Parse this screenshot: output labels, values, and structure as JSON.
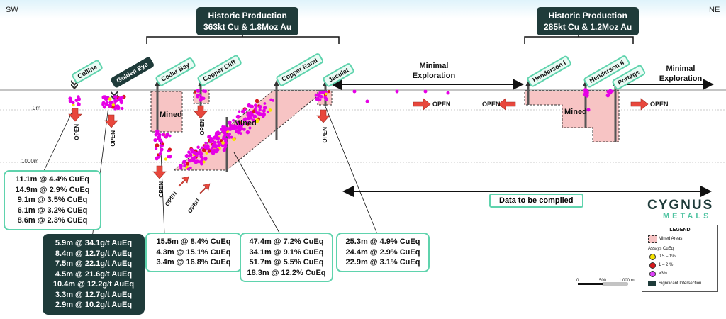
{
  "directions": {
    "left": "SW",
    "right": "NE"
  },
  "historic": [
    {
      "title": "Historic Production",
      "value": "363kt Cu & 1.8Moz Au"
    },
    {
      "title": "Historic Production",
      "value": "285kt Cu & 1.2Moz Au"
    }
  ],
  "deposits": [
    "Colline",
    "Golden Eye",
    "Cedar Bay",
    "Copper Cliff",
    "Copper Rand",
    "Jaculet",
    "Henderson I",
    "Henderson II",
    "Portage"
  ],
  "minimal_exploration": [
    "Minimal Exploration",
    "Minimal Exploration"
  ],
  "depth_labels": [
    "0m",
    "1000m"
  ],
  "mined_label": "Mined",
  "open_label": "OPEN",
  "data_banner": "Data to be compiled",
  "intercepts": {
    "colline": [
      "11.1m @ 4.4% CuEq",
      "14.9m @ 2.9% CuEq",
      "9.1m @ 3.5% CuEq",
      "6.1m @ 3.2% CuEq",
      "8.6m @ 2.3% CuEq"
    ],
    "golden_eye": [
      "5.9m @ 34.1g/t AuEq",
      "8.4m @ 12.7g/t AuEq",
      "7.5m @ 22.1g/t AuEq",
      "4.5m @ 21.6g/t AuEq",
      "10.4m @ 12.2g/t AuEq",
      "3.3m @ 12.7g/t AuEq",
      "2.9m @ 10.2g/t AuEq"
    ],
    "cedar_bay": [
      "15.5m @ 8.4% CuEq",
      "4.3m @ 15.1% CuEq",
      "3.4m @ 16.8% CuEq"
    ],
    "copper_rand": [
      "47.4m @ 7.2% CuEq",
      "34.1m @ 9.1% CuEq",
      "51.7m @ 5.5% CuEq",
      "18.3m @ 12.2% CuEq"
    ],
    "jaculet": [
      "25.3m @ 4.9% CuEq",
      "24.4m @ 2.9% CuEq",
      "22.9m @ 3.1% CuEq"
    ]
  },
  "logo": {
    "name": "CYGNUS",
    "sub": "METALS"
  },
  "legend": {
    "title": "LEGEND",
    "mined": "Mined Areas",
    "assays_title": "Assays CuEq",
    "assays": [
      {
        "label": "0.5 – 1%",
        "color": "#f5e300"
      },
      {
        "label": "1 – 2 %",
        "color": "#d7191c"
      },
      {
        "label": ">3%",
        "color": "#e040fb"
      }
    ],
    "significant": "Significant Intersection"
  },
  "scale": {
    "labels": [
      "0",
      "500",
      "1,000 m"
    ]
  },
  "colors": {
    "mined_fill": "#f7c4c4",
    "arrow": "#e8473c",
    "assay_magenta": "#e600e6",
    "accent": "#5fd3ad",
    "dark": "#1f3b3a"
  }
}
